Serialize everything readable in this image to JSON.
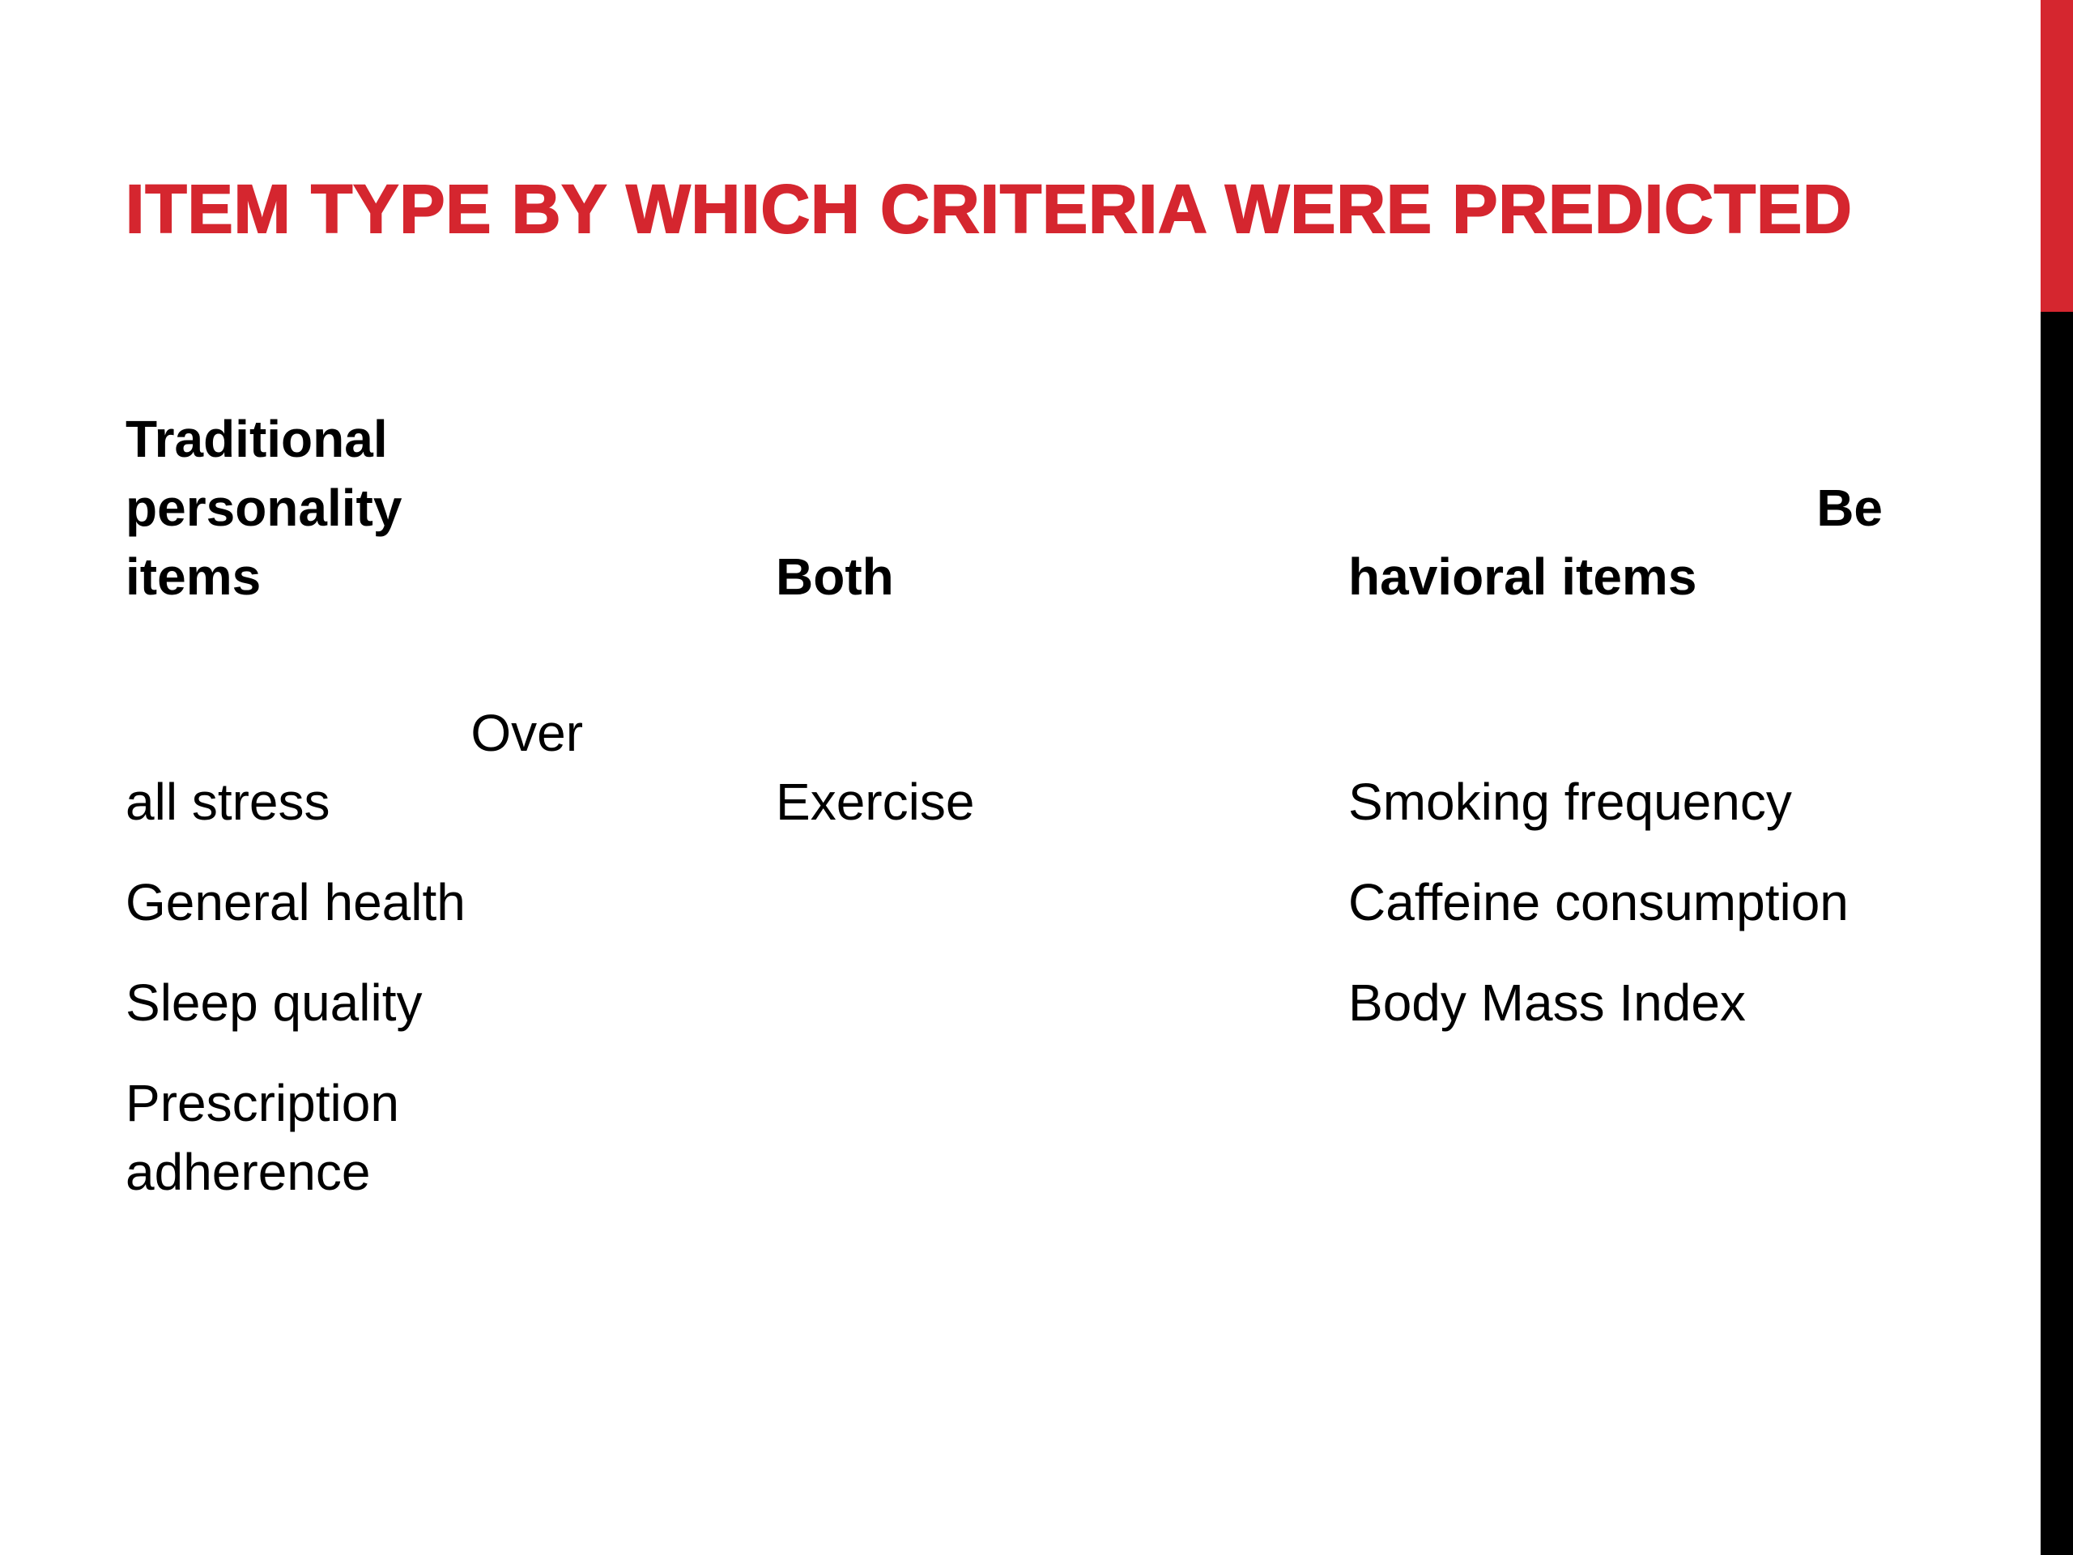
{
  "slide": {
    "title": "Item type by which criteria were predicted",
    "accent_color": "#d5262f",
    "columns": [
      {
        "header_lines": [
          "Traditional",
          "personality",
          "items"
        ],
        "items": [
          {
            "lines": [
              "Over",
              "all stress"
            ]
          },
          {
            "lines": [
              "General health"
            ]
          },
          {
            "lines": [
              "Sleep quality"
            ]
          },
          {
            "lines": [
              "Prescription",
              "adherence"
            ]
          }
        ]
      },
      {
        "header_lines": [
          "Both"
        ],
        "items": [
          {
            "lines": [
              "Exercise"
            ]
          }
        ]
      },
      {
        "header_lines": [
          "Be",
          "havioral items"
        ],
        "items": [
          {
            "lines": [
              "Smoking frequency"
            ]
          },
          {
            "lines": [
              "Caffeine consumption"
            ]
          },
          {
            "lines": [
              "Body Mass Index"
            ]
          }
        ]
      }
    ]
  }
}
